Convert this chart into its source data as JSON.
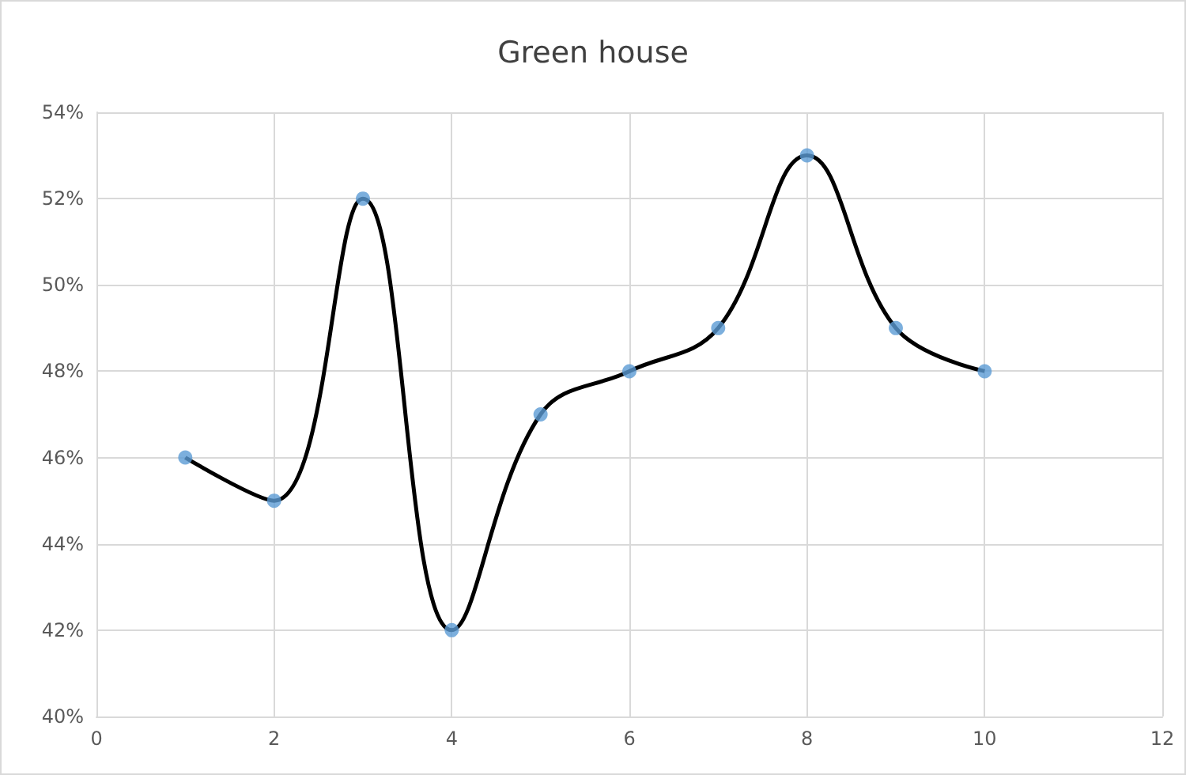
{
  "chart_data": {
    "type": "line",
    "title": "Green house",
    "x": [
      1,
      2,
      3,
      4,
      5,
      6,
      7,
      8,
      9,
      10
    ],
    "series": [
      {
        "color": "#000000",
        "marker": "none",
        "values": [
          46,
          45,
          52,
          42,
          47,
          48,
          49,
          53,
          49,
          48
        ]
      },
      {
        "type": "scatter",
        "color": "#5b9bd5",
        "marker": "circle",
        "values": [
          46,
          45,
          52,
          42,
          47,
          48,
          49,
          53,
          49,
          48
        ]
      }
    ],
    "xlim": [
      0,
      12
    ],
    "xticks": [
      0,
      2,
      4,
      6,
      8,
      10,
      12
    ],
    "ylim": [
      40,
      54
    ],
    "yticks": [
      {
        "value": 40,
        "label": "40%"
      },
      {
        "value": 42,
        "label": "42%"
      },
      {
        "value": 44,
        "label": "44%"
      },
      {
        "value": 46,
        "label": "46%"
      },
      {
        "value": 48,
        "label": "48%"
      },
      {
        "value": 50,
        "label": "50%"
      },
      {
        "value": 52,
        "label": "52%"
      },
      {
        "value": 54,
        "label": "54%"
      }
    ],
    "grid": true
  }
}
